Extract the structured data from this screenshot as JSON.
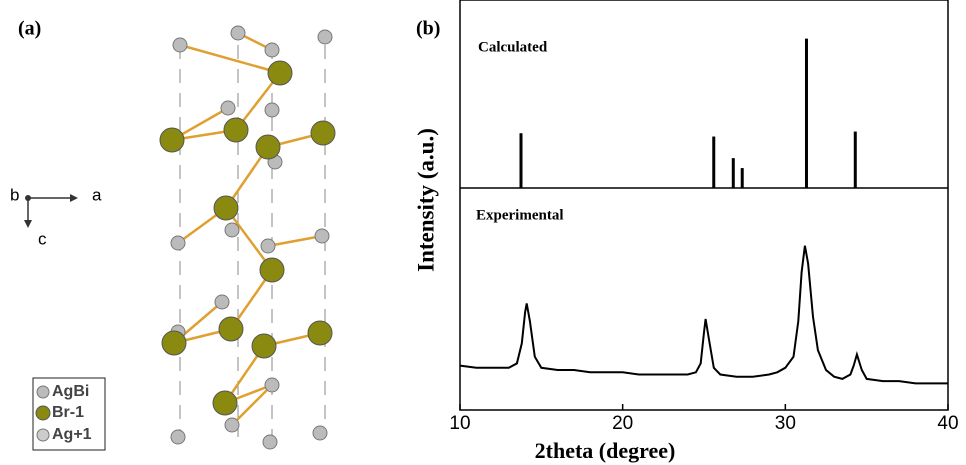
{
  "panels": {
    "a": "(a)",
    "b": "(b)"
  },
  "structure": {
    "axes": [
      "b",
      "a",
      "c"
    ],
    "legend": [
      "AgBi",
      "Br-1",
      "Ag+1"
    ]
  },
  "chart_data": [
    {
      "type": "stem",
      "annotation": "Calculated",
      "ylabel": "Intensity (a.u.)",
      "color": "#000000",
      "x": [
        13.75,
        25.6,
        26.8,
        27.35,
        31.3,
        34.3
      ],
      "values": [
        33,
        31,
        18,
        12,
        90,
        34
      ],
      "xlim": [
        10,
        40
      ],
      "ylim": [
        0,
        100
      ]
    },
    {
      "type": "line",
      "annotation": "Experimental",
      "xlabel": "2theta (degree)",
      "color": "#000000",
      "x": [
        10,
        11,
        12,
        13,
        13.5,
        13.8,
        14.0,
        14.1,
        14.3,
        14.6,
        15,
        16,
        17,
        18,
        19,
        20,
        21,
        22,
        23,
        24,
        24.5,
        24.8,
        25.0,
        25.1,
        25.3,
        25.6,
        26,
        27,
        28,
        29,
        29.5,
        30,
        30.5,
        30.8,
        31.0,
        31.2,
        31.4,
        31.7,
        32,
        32.5,
        33,
        33.5,
        34,
        34.2,
        34.4,
        34.7,
        35,
        36,
        37,
        38,
        39,
        40
      ],
      "values": [
        20,
        19,
        19,
        19,
        21,
        30,
        44,
        48,
        40,
        24,
        19,
        18,
        18,
        17,
        17,
        17,
        16,
        16,
        16,
        16,
        17,
        21,
        35,
        41,
        32,
        19,
        16,
        15,
        15,
        16,
        17,
        19,
        24,
        40,
        62,
        74,
        66,
        42,
        27,
        18,
        15,
        14,
        16,
        20,
        25,
        18,
        14,
        13,
        13,
        12,
        12,
        12
      ],
      "xlim": [
        10,
        40
      ],
      "ylim": [
        0,
        100
      ],
      "xticks": [
        10,
        20,
        30,
        40
      ]
    }
  ]
}
